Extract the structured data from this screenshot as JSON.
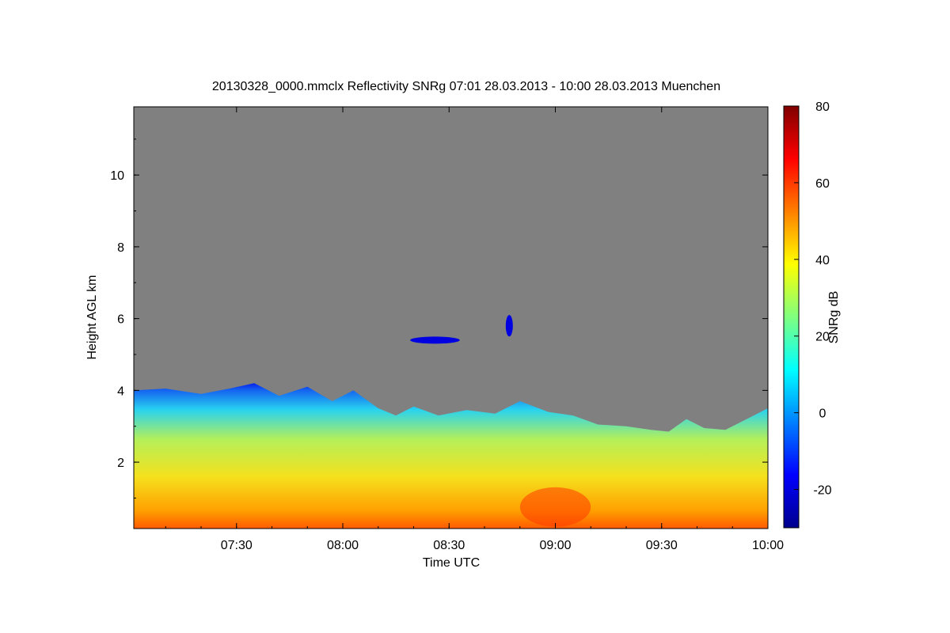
{
  "chart_data": {
    "type": "heatmap",
    "title": "20130328_0000.mmclx Reflectivity SNRg   07:01 28.03.2013 - 10:00 28.03.2013 Muenchen",
    "xlabel": "Time UTC",
    "ylabel": "Height AGL km",
    "colorbar_label": "SNRg dB",
    "x_range": [
      "07:01",
      "10:00"
    ],
    "y_range": [
      0.15,
      11.9
    ],
    "x_ticks": [
      "07:30",
      "08:00",
      "08:30",
      "09:00",
      "09:30",
      "10:00"
    ],
    "y_ticks": [
      "2",
      "4",
      "6",
      "8",
      "10"
    ],
    "colorbar_range": [
      -30,
      80
    ],
    "colorbar_ticks": [
      "-20",
      "0",
      "20",
      "40",
      "60",
      "80"
    ],
    "colormap": "jet",
    "background_color": "#808080",
    "cloud_top_km": [
      [
        "07:01",
        4.0
      ],
      [
        "07:10",
        4.05
      ],
      [
        "07:20",
        3.9
      ],
      [
        "07:28",
        4.05
      ],
      [
        "07:35",
        4.2
      ],
      [
        "07:42",
        3.85
      ],
      [
        "07:50",
        4.1
      ],
      [
        "07:57",
        3.7
      ],
      [
        "08:03",
        4.0
      ],
      [
        "08:10",
        3.5
      ],
      [
        "08:15",
        3.3
      ],
      [
        "08:20",
        3.55
      ],
      [
        "08:27",
        3.3
      ],
      [
        "08:35",
        3.45
      ],
      [
        "08:43",
        3.35
      ],
      [
        "08:50",
        3.7
      ],
      [
        "08:58",
        3.4
      ],
      [
        "09:05",
        3.3
      ],
      [
        "09:12",
        3.05
      ],
      [
        "09:20",
        3.0
      ],
      [
        "09:27",
        2.9
      ],
      [
        "09:32",
        2.85
      ],
      [
        "09:37",
        3.2
      ],
      [
        "09:42",
        2.95
      ],
      [
        "09:48",
        2.9
      ],
      [
        "09:55",
        3.25
      ],
      [
        "10:00",
        3.5
      ]
    ],
    "features": [
      {
        "kind": "elevated thin layer",
        "time": [
          "08:19",
          "08:33"
        ],
        "height_km": [
          5.3,
          5.5
        ],
        "snr_db": -20
      },
      {
        "kind": "isolated echo",
        "time": [
          "08:46",
          "08:48"
        ],
        "height_km": [
          5.5,
          6.1
        ],
        "snr_db": -20
      },
      {
        "kind": "strongest return",
        "time": [
          "08:50",
          "09:10"
        ],
        "height_km": [
          0.2,
          1.3
        ],
        "snr_db": 60
      }
    ]
  }
}
